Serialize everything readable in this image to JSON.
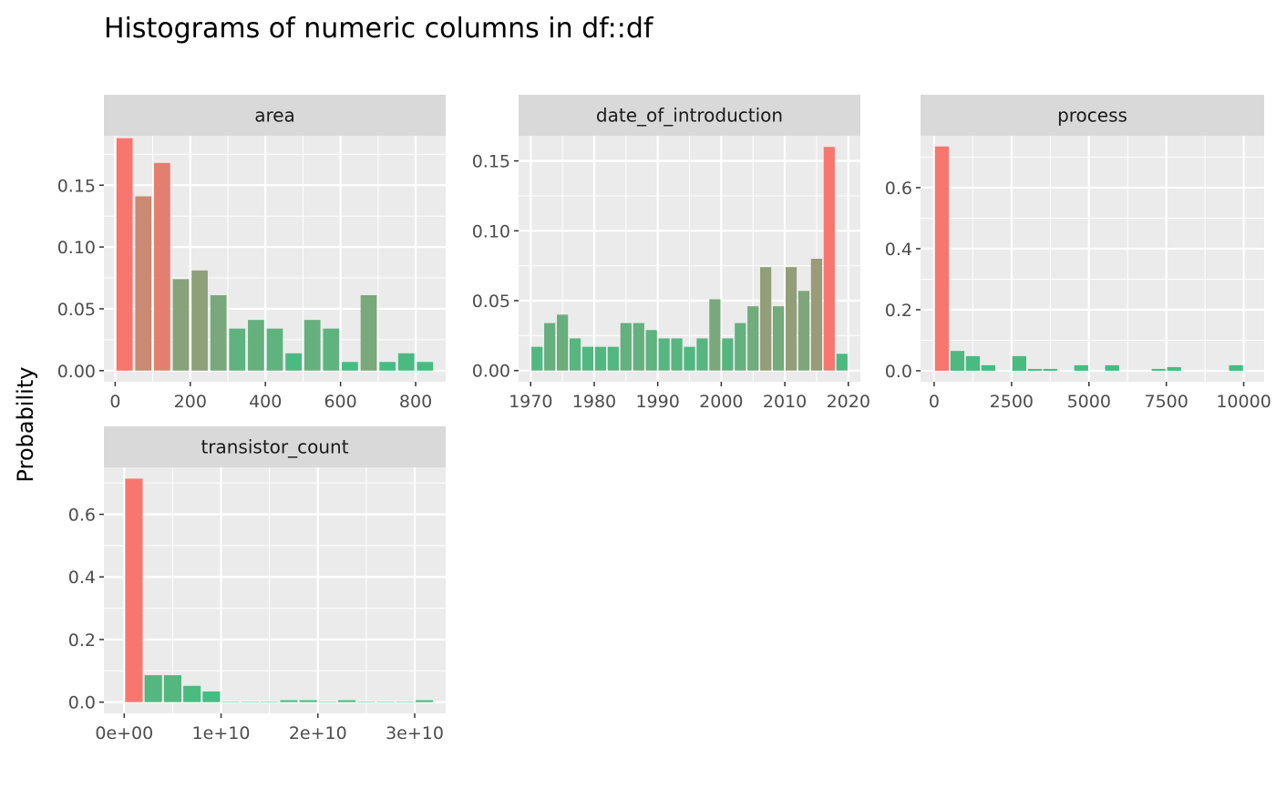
{
  "title": "Histograms of numeric columns in df::df",
  "ylabel": "Probability",
  "colors": {
    "panel_bg": "#EBEBEB",
    "strip_bg": "#D9D9D9",
    "grid": "#FFFFFF",
    "low": "#3CC082",
    "high": "#F8766D"
  },
  "chart_data": [
    {
      "type": "bar",
      "facet": "area",
      "x_ticks": [
        "0",
        "200",
        "400",
        "600",
        "800"
      ],
      "x_tick_values": [
        0,
        200,
        400,
        600,
        800
      ],
      "y_ticks": [
        "0.00",
        "0.05",
        "0.10",
        "0.15"
      ],
      "y_tick_values": [
        0,
        0.05,
        0.1,
        0.15
      ],
      "xlim": [
        -30,
        880
      ],
      "ylim": [
        -0.009,
        0.19
      ],
      "bin_width": 43,
      "bins": [
        [
          25,
          0.188
        ],
        [
          75,
          0.141
        ],
        [
          125,
          0.168
        ],
        [
          175,
          0.074
        ],
        [
          225,
          0.081
        ],
        [
          275,
          0.061
        ],
        [
          325,
          0.034
        ],
        [
          375,
          0.041
        ],
        [
          425,
          0.034
        ],
        [
          475,
          0.014
        ],
        [
          525,
          0.041
        ],
        [
          575,
          0.034
        ],
        [
          625,
          0.007
        ],
        [
          675,
          0.061
        ],
        [
          725,
          0.007
        ],
        [
          775,
          0.014
        ],
        [
          825,
          0.007
        ]
      ]
    },
    {
      "type": "bar",
      "facet": "date_of_introduction",
      "x_ticks": [
        "1970",
        "1980",
        "1990",
        "2000",
        "2010",
        "2020"
      ],
      "x_tick_values": [
        1970,
        1980,
        1990,
        2000,
        2010,
        2020
      ],
      "y_ticks": [
        "0.00",
        "0.05",
        "0.10",
        "0.15"
      ],
      "y_tick_values": [
        0,
        0.05,
        0.1,
        0.15
      ],
      "xlim": [
        1968.1,
        2021.9
      ],
      "ylim": [
        -0.008,
        0.168
      ],
      "bin_width": 1.75,
      "bins": [
        [
          1971,
          0.017
        ],
        [
          1973,
          0.034
        ],
        [
          1975,
          0.04
        ],
        [
          1977,
          0.023
        ],
        [
          1979,
          0.017
        ],
        [
          1981,
          0.017
        ],
        [
          1983,
          0.017
        ],
        [
          1985,
          0.034
        ],
        [
          1987,
          0.034
        ],
        [
          1989,
          0.029
        ],
        [
          1991,
          0.023
        ],
        [
          1993,
          0.023
        ],
        [
          1995,
          0.017
        ],
        [
          1997,
          0.023
        ],
        [
          1999,
          0.051
        ],
        [
          2001,
          0.023
        ],
        [
          2003,
          0.034
        ],
        [
          2005,
          0.046
        ],
        [
          2007,
          0.074
        ],
        [
          2009,
          0.046
        ],
        [
          2011,
          0.074
        ],
        [
          2013,
          0.057
        ],
        [
          2015,
          0.08
        ],
        [
          2017,
          0.16
        ],
        [
          2019,
          0.012
        ]
      ]
    },
    {
      "type": "bar",
      "facet": "process",
      "x_ticks": [
        "0",
        "2500",
        "5000",
        "7500",
        "10000"
      ],
      "x_tick_values": [
        0,
        2500,
        5000,
        7500,
        10000
      ],
      "y_ticks": [
        "0.0",
        "0.2",
        "0.4",
        "0.6"
      ],
      "y_tick_values": [
        0,
        0.2,
        0.4,
        0.6
      ],
      "xlim": [
        -440,
        10660
      ],
      "ylim": [
        -0.036,
        0.77
      ],
      "bin_width": 450,
      "bins": [
        [
          250,
          0.735
        ],
        [
          750,
          0.065
        ],
        [
          1250,
          0.048
        ],
        [
          1750,
          0.018
        ],
        [
          2750,
          0.048
        ],
        [
          3250,
          0.006
        ],
        [
          3750,
          0.006
        ],
        [
          4750,
          0.018
        ],
        [
          5750,
          0.018
        ],
        [
          7250,
          0.006
        ],
        [
          7750,
          0.012
        ],
        [
          9750,
          0.018
        ]
      ]
    },
    {
      "type": "bar",
      "facet": "transistor_count",
      "x_ticks": [
        "0e+00",
        "1e+10",
        "2e+10",
        "3e+10"
      ],
      "x_tick_values": [
        0,
        10000000000,
        20000000000,
        30000000000
      ],
      "y_ticks": [
        "0.0",
        "0.2",
        "0.4",
        "0.6"
      ],
      "y_tick_values": [
        0,
        0.2,
        0.4,
        0.6
      ],
      "xlim": [
        -2100000000,
        33200000000
      ],
      "ylim": [
        -0.036,
        0.75
      ],
      "bin_width": 1800000000,
      "bins": [
        [
          1000000000,
          0.714
        ],
        [
          3000000000,
          0.086
        ],
        [
          5000000000,
          0.086
        ],
        [
          7000000000,
          0.052
        ],
        [
          9000000000,
          0.034
        ],
        [
          11000000000,
          0.001
        ],
        [
          13000000000,
          0.001
        ],
        [
          15000000000,
          0.001
        ],
        [
          17000000000,
          0.006
        ],
        [
          19000000000,
          0.006
        ],
        [
          21000000000,
          0.001
        ],
        [
          23000000000,
          0.006
        ],
        [
          25000000000,
          0.001
        ],
        [
          27000000000,
          0.001
        ],
        [
          29000000000,
          0.001
        ],
        [
          31000000000,
          0.006
        ]
      ]
    }
  ]
}
